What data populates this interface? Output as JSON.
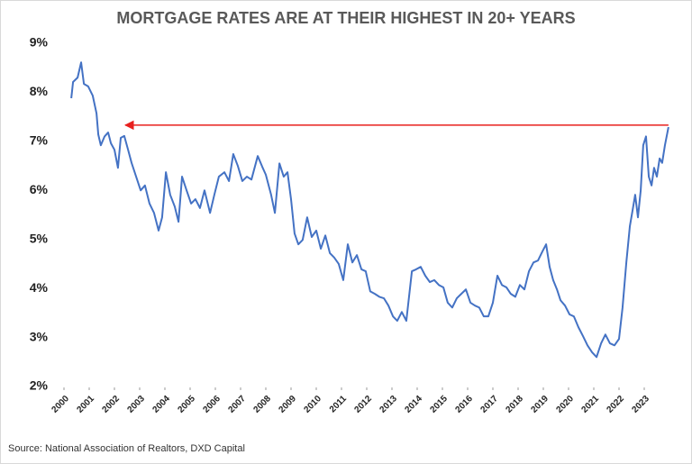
{
  "chart_data": {
    "type": "line",
    "title": "MORTGAGE RATES ARE AT THEIR HIGHEST IN 20+ YEARS",
    "source": "Source: National Association of Realtors, DXD Capital",
    "xlim": [
      2000,
      2024
    ],
    "xticks": [
      2000,
      2001,
      2002,
      2003,
      2004,
      2005,
      2006,
      2007,
      2008,
      2009,
      2010,
      2011,
      2012,
      2013,
      2014,
      2015,
      2016,
      2017,
      2018,
      2019,
      2020,
      2021,
      2022,
      2023
    ],
    "ylim": [
      2,
      9
    ],
    "yticks": [
      {
        "value": 2,
        "label": "2%"
      },
      {
        "value": 3,
        "label": "3%"
      },
      {
        "value": 4,
        "label": "4%"
      },
      {
        "value": 5,
        "label": "5%"
      },
      {
        "value": 6,
        "label": "6%"
      },
      {
        "value": 7,
        "label": "7%"
      },
      {
        "value": 8,
        "label": "8%"
      },
      {
        "value": 9,
        "label": "9%"
      }
    ],
    "grid": false,
    "x": [
      2000.29,
      2000.36,
      2000.54,
      2000.68,
      2000.79,
      2000.96,
      2001.14,
      2001.29,
      2001.36,
      2001.46,
      2001.61,
      2001.75,
      2001.86,
      2002.0,
      2002.14,
      2002.25,
      2002.39,
      2002.54,
      2002.68,
      2002.86,
      2003.04,
      2003.21,
      2003.39,
      2003.57,
      2003.75,
      2003.89,
      2004.04,
      2004.21,
      2004.39,
      2004.54,
      2004.68,
      2004.86,
      2005.04,
      2005.21,
      2005.39,
      2005.57,
      2005.79,
      2005.96,
      2006.14,
      2006.36,
      2006.54,
      2006.71,
      2006.89,
      2007.07,
      2007.25,
      2007.43,
      2007.68,
      2007.86,
      2008.0,
      2008.21,
      2008.36,
      2008.54,
      2008.71,
      2008.86,
      2009.0,
      2009.14,
      2009.29,
      2009.46,
      2009.64,
      2009.82,
      2010.0,
      2010.18,
      2010.36,
      2010.54,
      2010.71,
      2010.89,
      2011.07,
      2011.25,
      2011.43,
      2011.61,
      2011.79,
      2011.96,
      2012.14,
      2012.32,
      2012.5,
      2012.68,
      2012.86,
      2013.04,
      2013.21,
      2013.39,
      2013.57,
      2013.79,
      2013.96,
      2014.14,
      2014.32,
      2014.5,
      2014.68,
      2014.86,
      2015.04,
      2015.21,
      2015.39,
      2015.57,
      2015.75,
      2015.93,
      2016.11,
      2016.29,
      2016.46,
      2016.64,
      2016.82,
      2017.0,
      2017.18,
      2017.36,
      2017.54,
      2017.71,
      2017.89,
      2018.07,
      2018.25,
      2018.43,
      2018.61,
      2018.79,
      2018.96,
      2019.11,
      2019.25,
      2019.39,
      2019.54,
      2019.68,
      2019.86,
      2020.04,
      2020.21,
      2020.39,
      2020.57,
      2020.75,
      2020.93,
      2021.11,
      2021.29,
      2021.46,
      2021.64,
      2021.82,
      2022.0,
      2022.14,
      2022.29,
      2022.43,
      2022.54,
      2022.64,
      2022.75,
      2022.86,
      2022.96,
      2023.07,
      2023.18,
      2023.29,
      2023.39,
      2023.5,
      2023.61,
      2023.71,
      2023.82,
      2023.96
    ],
    "series": [
      {
        "color": "#4472c4",
        "values": [
          7.88,
          8.21,
          8.3,
          8.61,
          8.17,
          8.12,
          7.93,
          7.57,
          7.14,
          6.92,
          7.1,
          7.18,
          6.96,
          6.83,
          6.46,
          7.07,
          7.11,
          6.83,
          6.56,
          6.28,
          6.0,
          6.1,
          5.73,
          5.54,
          5.18,
          5.45,
          6.37,
          5.91,
          5.67,
          5.36,
          6.28,
          6.0,
          5.73,
          5.82,
          5.64,
          6.0,
          5.54,
          5.91,
          6.28,
          6.37,
          6.19,
          6.74,
          6.5,
          6.19,
          6.28,
          6.22,
          6.7,
          6.48,
          6.32,
          5.91,
          5.54,
          6.55,
          6.28,
          6.37,
          5.82,
          5.12,
          4.9,
          4.99,
          5.45,
          5.05,
          5.18,
          4.81,
          5.08,
          4.72,
          4.63,
          4.5,
          4.17,
          4.9,
          4.53,
          4.68,
          4.39,
          4.35,
          3.94,
          3.89,
          3.83,
          3.8,
          3.65,
          3.43,
          3.34,
          3.52,
          3.34,
          4.35,
          4.39,
          4.44,
          4.26,
          4.13,
          4.17,
          4.07,
          4.02,
          3.71,
          3.61,
          3.8,
          3.89,
          3.98,
          3.71,
          3.65,
          3.61,
          3.43,
          3.43,
          3.71,
          4.26,
          4.07,
          4.02,
          3.89,
          3.83,
          4.07,
          3.98,
          4.35,
          4.53,
          4.57,
          4.75,
          4.9,
          4.44,
          4.17,
          3.98,
          3.76,
          3.65,
          3.47,
          3.43,
          3.21,
          3.03,
          2.84,
          2.7,
          2.6,
          2.88,
          3.06,
          2.88,
          2.84,
          2.97,
          3.61,
          4.53,
          5.27,
          5.6,
          5.91,
          5.45,
          6.0,
          6.92,
          7.1,
          6.28,
          6.1,
          6.46,
          6.28,
          6.65,
          6.56,
          6.92,
          7.29
        ]
      }
    ],
    "arrow": {
      "y": 7.33,
      "x": [
        2023.96,
        2002.43
      ],
      "color": "#e8201e"
    }
  }
}
